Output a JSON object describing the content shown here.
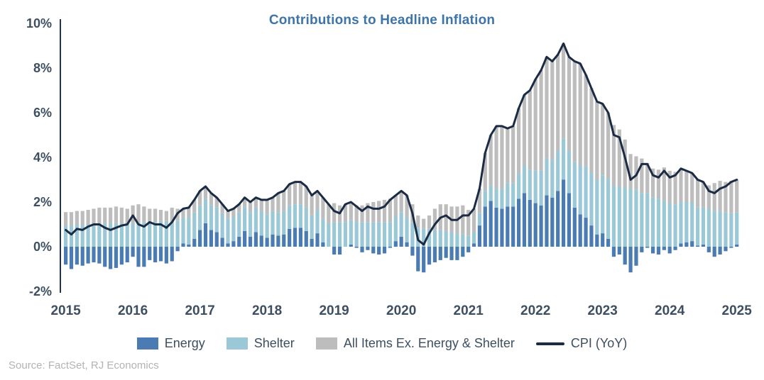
{
  "title": "Contributions to Headline Inflation",
  "source": "Source: FactSet, RJ Economics",
  "colors": {
    "energy": "#4a7bb2",
    "shelter": "#9bc8d6",
    "core": "#bdbdbd",
    "cpi_line": "#1b2b44",
    "title": "#3e74a8",
    "axis_text": "#3d4f60",
    "axis_line": "#24344a",
    "source_text": "#b3b3b3"
  },
  "chart_data": {
    "type": "bar",
    "stacked": true,
    "x_start": "2015-01",
    "frequency": "monthly",
    "title": "Contributions to Headline Inflation",
    "xlabel": "",
    "ylabel": "",
    "y_tick_format": "percent",
    "ylim": [
      -2,
      10
    ],
    "y_ticks": [
      10,
      8,
      6,
      4,
      2,
      0,
      -2
    ],
    "x_tick_labels": [
      "2015",
      "2016",
      "2017",
      "2018",
      "2019",
      "2020",
      "2021",
      "2022",
      "2023",
      "2024",
      "2025"
    ],
    "legend_position": "bottom",
    "grid": false,
    "series": [
      {
        "name": "Energy",
        "type": "bar",
        "color": "#4a7bb2",
        "values": [
          -0.8,
          -1.0,
          -0.8,
          -0.85,
          -0.75,
          -0.7,
          -0.75,
          -0.9,
          -1.0,
          -0.95,
          -0.8,
          -0.7,
          -0.45,
          -0.9,
          -0.9,
          -0.6,
          -0.7,
          -0.65,
          -0.75,
          -0.65,
          -0.2,
          0.15,
          0.1,
          0.35,
          0.75,
          1.05,
          0.75,
          0.65,
          0.4,
          0.15,
          0.25,
          0.45,
          0.7,
          0.45,
          0.65,
          0.5,
          0.4,
          0.55,
          0.5,
          0.55,
          0.8,
          0.85,
          0.85,
          0.7,
          0.35,
          0.6,
          0.2,
          0.0,
          -0.35,
          -0.35,
          0.0,
          0.1,
          -0.05,
          -0.25,
          -0.15,
          -0.3,
          -0.35,
          -0.3,
          -0.05,
          0.25,
          0.45,
          0.2,
          -0.4,
          -1.1,
          -1.15,
          -0.8,
          -0.7,
          -0.6,
          -0.5,
          -0.6,
          -0.6,
          -0.45,
          -0.25,
          0.15,
          0.95,
          1.8,
          2.05,
          1.75,
          1.7,
          1.8,
          1.8,
          2.15,
          2.4,
          2.1,
          1.95,
          1.85,
          2.3,
          2.2,
          2.5,
          3.0,
          2.4,
          1.75,
          1.45,
          1.3,
          0.95,
          0.55,
          0.6,
          0.35,
          -0.45,
          -0.35,
          -0.8,
          -1.15,
          -0.85,
          -0.25,
          -0.05,
          -0.3,
          -0.35,
          -0.15,
          -0.3,
          -0.15,
          0.15,
          0.2,
          0.25,
          0.05,
          0.1,
          -0.25,
          -0.45,
          -0.35,
          -0.2,
          -0.05,
          0.1
        ]
      },
      {
        "name": "Shelter",
        "type": "bar",
        "color": "#9bc8d6",
        "values": [
          0.95,
          0.95,
          1.0,
          1.0,
          1.0,
          1.0,
          1.05,
          1.05,
          1.05,
          1.05,
          1.05,
          1.05,
          1.05,
          1.1,
          1.1,
          1.1,
          1.1,
          1.15,
          1.15,
          1.15,
          1.15,
          1.15,
          1.2,
          1.2,
          1.1,
          1.1,
          1.1,
          1.1,
          1.1,
          1.1,
          1.1,
          1.1,
          1.1,
          1.1,
          1.1,
          1.1,
          1.05,
          1.05,
          1.05,
          1.05,
          1.05,
          1.05,
          1.05,
          1.05,
          1.05,
          1.05,
          1.05,
          1.05,
          1.1,
          1.1,
          1.1,
          1.1,
          1.1,
          1.1,
          1.1,
          1.1,
          1.1,
          1.1,
          1.1,
          1.1,
          1.1,
          1.1,
          1.05,
          0.85,
          0.8,
          0.8,
          0.75,
          0.75,
          0.7,
          0.65,
          0.6,
          0.55,
          0.5,
          0.5,
          0.55,
          0.7,
          0.7,
          0.85,
          0.9,
          1.05,
          1.05,
          1.15,
          1.25,
          1.35,
          1.45,
          1.55,
          1.65,
          1.7,
          1.8,
          1.85,
          1.9,
          2.05,
          2.2,
          2.3,
          2.35,
          2.45,
          2.6,
          2.7,
          2.7,
          2.7,
          2.65,
          2.6,
          2.55,
          2.4,
          2.4,
          2.2,
          2.15,
          2.05,
          1.95,
          1.9,
          1.85,
          1.8,
          1.75,
          1.7,
          1.65,
          1.7,
          1.6,
          1.6,
          1.55,
          1.5,
          1.45
        ]
      },
      {
        "name": "All Items Ex. Energy & Shelter",
        "type": "bar",
        "color": "#bdbdbd",
        "values": [
          0.6,
          0.6,
          0.6,
          0.6,
          0.65,
          0.7,
          0.7,
          0.7,
          0.7,
          0.75,
          0.7,
          0.65,
          0.8,
          0.8,
          0.7,
          0.6,
          0.6,
          0.5,
          0.45,
          0.6,
          0.55,
          0.4,
          0.45,
          0.55,
          0.65,
          0.55,
          0.55,
          0.45,
          0.4,
          0.35,
          0.35,
          0.35,
          0.4,
          0.45,
          0.45,
          0.5,
          0.65,
          0.6,
          0.85,
          0.9,
          0.95,
          1.0,
          1.0,
          0.95,
          0.9,
          0.85,
          0.95,
          0.85,
          0.85,
          0.75,
          0.8,
          0.8,
          0.75,
          0.75,
          0.85,
          0.9,
          0.95,
          1.0,
          1.05,
          0.95,
          0.95,
          1.0,
          0.85,
          0.55,
          0.45,
          0.6,
          0.95,
          1.15,
          1.2,
          1.15,
          1.2,
          1.3,
          1.15,
          1.05,
          1.1,
          1.7,
          2.25,
          2.8,
          2.8,
          2.45,
          2.55,
          2.9,
          3.15,
          3.55,
          4.1,
          4.5,
          4.55,
          4.4,
          4.3,
          4.25,
          4.2,
          4.5,
          4.55,
          4.1,
          3.8,
          3.5,
          3.2,
          2.95,
          2.75,
          2.55,
          2.15,
          1.55,
          1.5,
          1.55,
          1.35,
          1.3,
          1.3,
          1.5,
          1.45,
          1.45,
          1.5,
          1.4,
          1.3,
          1.25,
          1.15,
          1.05,
          1.25,
          1.35,
          1.35,
          1.45,
          1.45
        ]
      },
      {
        "name": "CPI (YoY)",
        "type": "line",
        "color": "#1b2b44",
        "values": [
          0.75,
          0.55,
          0.8,
          0.75,
          0.9,
          1.0,
          1.0,
          0.85,
          0.75,
          0.85,
          0.95,
          1.0,
          1.4,
          1.0,
          0.9,
          1.1,
          1.0,
          1.0,
          0.85,
          1.1,
          1.5,
          1.7,
          1.75,
          2.1,
          2.5,
          2.7,
          2.4,
          2.2,
          1.9,
          1.6,
          1.7,
          1.9,
          2.2,
          2.0,
          2.2,
          2.1,
          2.1,
          2.2,
          2.4,
          2.5,
          2.8,
          2.9,
          2.9,
          2.7,
          2.3,
          2.5,
          2.2,
          1.9,
          1.6,
          1.5,
          1.9,
          2.0,
          1.8,
          1.6,
          1.8,
          1.7,
          1.7,
          1.8,
          2.1,
          2.3,
          2.5,
          2.3,
          1.5,
          0.3,
          0.1,
          0.6,
          1.0,
          1.3,
          1.4,
          1.2,
          1.2,
          1.4,
          1.4,
          1.7,
          2.6,
          4.2,
          5.0,
          5.4,
          5.4,
          5.3,
          5.4,
          6.2,
          6.8,
          7.0,
          7.5,
          7.9,
          8.5,
          8.3,
          8.6,
          9.1,
          8.5,
          8.3,
          8.2,
          7.7,
          7.1,
          6.5,
          6.4,
          6.0,
          5.0,
          4.9,
          4.0,
          3.0,
          3.2,
          3.7,
          3.7,
          3.2,
          3.1,
          3.4,
          3.1,
          3.2,
          3.5,
          3.4,
          3.3,
          3.0,
          2.9,
          2.5,
          2.4,
          2.6,
          2.7,
          2.9,
          3.0
        ]
      }
    ]
  }
}
